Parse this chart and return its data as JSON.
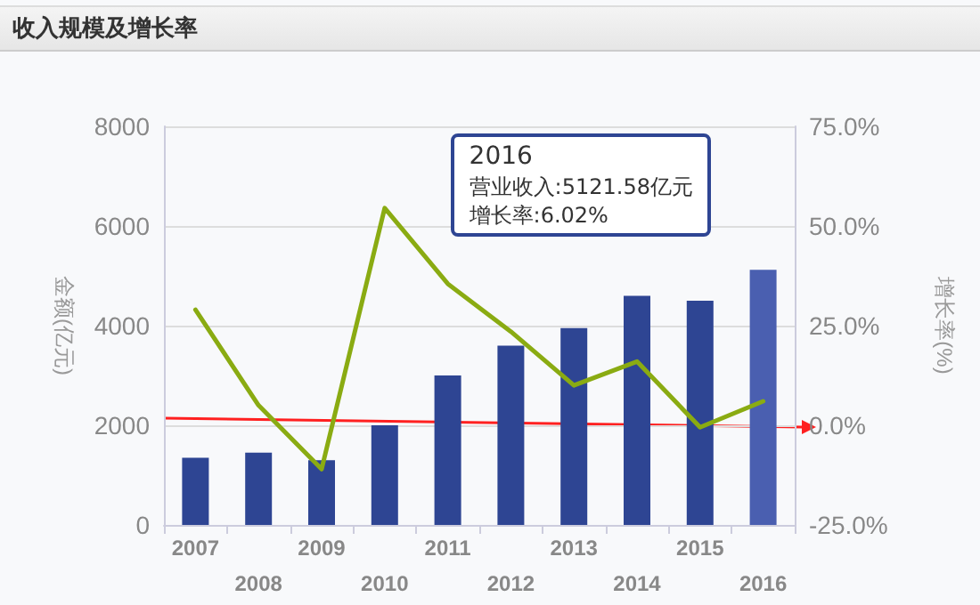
{
  "chart_data": {
    "type": "bar",
    "title": "收入规模及增长率",
    "ylabel": "金额(亿元)",
    "y2label": "增长率(%)",
    "categories": [
      "2007",
      "2008",
      "2009",
      "2010",
      "2011",
      "2012",
      "2013",
      "2014",
      "2015",
      "2016"
    ],
    "series": [
      {
        "colors": [
          "#2e4593",
          "#2e4593",
          "#2e4593",
          "#2e4593",
          "#2e4593",
          "#2e4593",
          "#2e4593",
          "#2e4593",
          "#2e4593",
          "#4a5fb0"
        ],
        "values": [
          1350,
          1450,
          1300,
          2000,
          3000,
          3600,
          3950,
          4600,
          4500,
          5121.58
        ]
      },
      {
        "type": "line",
        "axis": "y2",
        "color": "#8aab12",
        "values": [
          29,
          5,
          -11,
          54.5,
          35.5,
          23.5,
          10,
          16,
          -0.5,
          6.02
        ]
      }
    ],
    "ylim": [
      0,
      8000
    ],
    "yticks": [
      0,
      2000,
      4000,
      6000,
      8000
    ],
    "y2lim": [
      -25,
      75
    ],
    "y2ticks": [
      {
        "value": -25,
        "label": "-25.0%"
      },
      {
        "value": 0,
        "label": "0.0%"
      },
      {
        "value": 25,
        "label": "25.0%"
      },
      {
        "value": 50,
        "label": "50.0%"
      },
      {
        "value": 75,
        "label": "75.0%"
      }
    ],
    "grid": "y",
    "marker": "none",
    "line_style": "solid",
    "annotations": [
      "2016",
      "营业收入:5121.58亿元",
      "增长率:6.02%"
    ]
  }
}
